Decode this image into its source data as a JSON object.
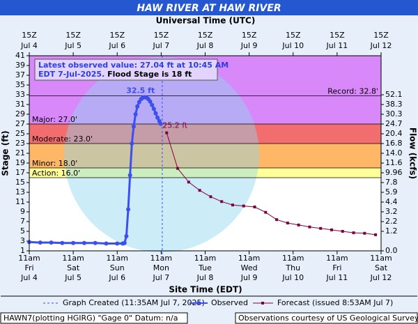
{
  "chart_data": {
    "type": "line",
    "title": "HAW RIVER AT HAW RIVER",
    "x2_axis_label": "Universal Time (UTC)",
    "x_axis_label": "Site Time (EDT)",
    "y_axis_label": "Stage (ft)",
    "y2_axis_label": "Flow (kcfs)",
    "xlim": [
      "2025-07-04T11:00-04:00",
      "2025-07-12T11:00-04:00"
    ],
    "xticks": [
      {
        "value": "2025-07-04T11:00-04:00",
        "label_time": "11am",
        "label_day": "Fri",
        "label_date": "Jul 4"
      },
      {
        "value": "2025-07-05T11:00-04:00",
        "label_time": "11am",
        "label_day": "Sat",
        "label_date": "Jul 5"
      },
      {
        "value": "2025-07-06T11:00-04:00",
        "label_time": "11am",
        "label_day": "Sun",
        "label_date": "Jul 6"
      },
      {
        "value": "2025-07-07T11:00-04:00",
        "label_time": "11am",
        "label_day": "Mon",
        "label_date": "Jul 7"
      },
      {
        "value": "2025-07-08T11:00-04:00",
        "label_time": "11am",
        "label_day": "Tue",
        "label_date": "Jul 8"
      },
      {
        "value": "2025-07-09T11:00-04:00",
        "label_time": "11am",
        "label_day": "Wed",
        "label_date": "Jul 9"
      },
      {
        "value": "2025-07-10T11:00-04:00",
        "label_time": "11am",
        "label_day": "Thu",
        "label_date": "Jul 10"
      },
      {
        "value": "2025-07-11T11:00-04:00",
        "label_time": "11am",
        "label_day": "Fri",
        "label_date": "Jul 11"
      },
      {
        "value": "2025-07-12T11:00-04:00",
        "label_time": "11am",
        "label_day": "Sat",
        "label_date": "Jul 12"
      }
    ],
    "x2ticks": [
      {
        "value": "2025-07-04T15:00Z",
        "label_hour": "15Z",
        "label_date": "Jul 4"
      },
      {
        "value": "2025-07-05T15:00Z",
        "label_hour": "15Z",
        "label_date": "Jul 5"
      },
      {
        "value": "2025-07-06T15:00Z",
        "label_hour": "15Z",
        "label_date": "Jul 6"
      },
      {
        "value": "2025-07-07T15:00Z",
        "label_hour": "15Z",
        "label_date": "Jul 7"
      },
      {
        "value": "2025-07-08T15:00Z",
        "label_hour": "15Z",
        "label_date": "Jul 8"
      },
      {
        "value": "2025-07-09T15:00Z",
        "label_hour": "15Z",
        "label_date": "Jul 9"
      },
      {
        "value": "2025-07-10T15:00Z",
        "label_hour": "15Z",
        "label_date": "Jul 10"
      },
      {
        "value": "2025-07-11T15:00Z",
        "label_hour": "15Z",
        "label_date": "Jul 11"
      },
      {
        "value": "2025-07-12T15:00Z",
        "label_hour": "15Z",
        "label_date": "Jul 12"
      }
    ],
    "ylim": [
      1,
      41
    ],
    "yticks": [
      1,
      3,
      5,
      7,
      9,
      11,
      13,
      15,
      17,
      19,
      21,
      23,
      25,
      27,
      29,
      31,
      33,
      35,
      37,
      39,
      41
    ],
    "y2ticks": [
      52.1,
      38.3,
      30.3,
      24.7,
      20.4,
      16.8,
      {
        "value": 14,
        "label": "14.0"
      },
      11.6,
      9.96,
      7.8,
      5.9,
      4.4,
      3.2,
      2.2,
      1.2,
      {
        "value": 0,
        "label": "0.0"
      }
    ],
    "y2_stage": [
      33,
      31,
      29,
      27,
      25,
      23,
      21,
      19,
      17,
      15,
      13,
      11,
      9,
      7,
      5,
      1
    ],
    "flood_levels": [
      {
        "label": "Major: 27.0'",
        "value": 27.0,
        "color": "#d888f8"
      },
      {
        "label": "Moderate: 23.0'",
        "value": 23.0,
        "color": "#f26e6e"
      },
      {
        "label": "Minor: 18.0'",
        "value": 18.0,
        "color": "#fdb766"
      },
      {
        "label": "Action: 16.0'",
        "value": 16.0,
        "color": "#ffff99"
      }
    ],
    "record": {
      "label": "Record: 32.8'",
      "value": 32.8
    },
    "info": {
      "line1": "Latest observed value: 27.04 ft at 10:45 AM",
      "line2": "EDT 7-Jul-2025.",
      "flood_stage": "Flood Stage is 18 ft"
    },
    "created": {
      "label": "Graph Created (11:35AM Jul 7, 2025)",
      "time": "2025-07-07T11:35-04:00"
    },
    "peak_label": "32.5 ft",
    "forecast_label": "25.2 ft",
    "series": [
      {
        "name": "Observed",
        "color": "#3b4ff0",
        "x": [
          "2025-07-04T11:00-04:00",
          "2025-07-04T17:00-04:00",
          "2025-07-04T23:00-04:00",
          "2025-07-05T05:00-04:00",
          "2025-07-05T11:00-04:00",
          "2025-07-05T17:00-04:00",
          "2025-07-05T23:00-04:00",
          "2025-07-06T05:00-04:00",
          "2025-07-06T11:00-04:00",
          "2025-07-06T14:00-04:00",
          "2025-07-06T15:00-04:00",
          "2025-07-06T16:00-04:00",
          "2025-07-06T17:00-04:00",
          "2025-07-06T18:00-04:00",
          "2025-07-06T19:00-04:00",
          "2025-07-06T20:00-04:00",
          "2025-07-06T21:00-04:00",
          "2025-07-06T22:00-04:00",
          "2025-07-06T23:00-04:00",
          "2025-07-07T00:00-04:00",
          "2025-07-07T01:00-04:00",
          "2025-07-07T02:00-04:00",
          "2025-07-07T03:00-04:00",
          "2025-07-07T04:00-04:00",
          "2025-07-07T05:00-04:00",
          "2025-07-07T06:00-04:00",
          "2025-07-07T07:00-04:00",
          "2025-07-07T08:00-04:00",
          "2025-07-07T09:00-04:00",
          "2025-07-07T10:00-04:00",
          "2025-07-07T10:45-04:00"
        ],
        "values": [
          2.8,
          2.7,
          2.7,
          2.6,
          2.6,
          2.6,
          2.6,
          2.5,
          2.5,
          2.5,
          2.6,
          4.0,
          9.5,
          16.5,
          23.0,
          26.5,
          29.0,
          30.6,
          31.5,
          32.1,
          32.4,
          32.5,
          32.4,
          32.1,
          31.6,
          30.9,
          30.1,
          29.2,
          28.3,
          27.6,
          27.04
        ]
      },
      {
        "name": "Forecast (issued 8:53AM Jul 7)",
        "color": "#800040",
        "x": [
          "2025-07-07T14:00-04:00",
          "2025-07-07T20:00-04:00",
          "2025-07-08T02:00-04:00",
          "2025-07-08T08:00-04:00",
          "2025-07-08T14:00-04:00",
          "2025-07-08T20:00-04:00",
          "2025-07-09T02:00-04:00",
          "2025-07-09T08:00-04:00",
          "2025-07-09T14:00-04:00",
          "2025-07-09T20:00-04:00",
          "2025-07-10T02:00-04:00",
          "2025-07-10T08:00-04:00",
          "2025-07-10T14:00-04:00",
          "2025-07-10T20:00-04:00",
          "2025-07-11T02:00-04:00",
          "2025-07-11T08:00-04:00",
          "2025-07-11T14:00-04:00",
          "2025-07-11T20:00-04:00",
          "2025-07-12T02:00-04:00",
          "2025-07-12T08:00-04:00"
        ],
        "values": [
          25.2,
          17.9,
          15.1,
          13.4,
          12.1,
          11.1,
          10.4,
          10.2,
          10.0,
          8.9,
          7.4,
          6.7,
          6.3,
          5.9,
          5.6,
          5.3,
          5.0,
          4.7,
          4.6,
          4.3
        ]
      }
    ],
    "footer_left": "HAWN7(plotting HGIRG) \"Gage 0\" Datum: n/a",
    "footer_right": "Observations courtesy of US Geological Survey"
  }
}
